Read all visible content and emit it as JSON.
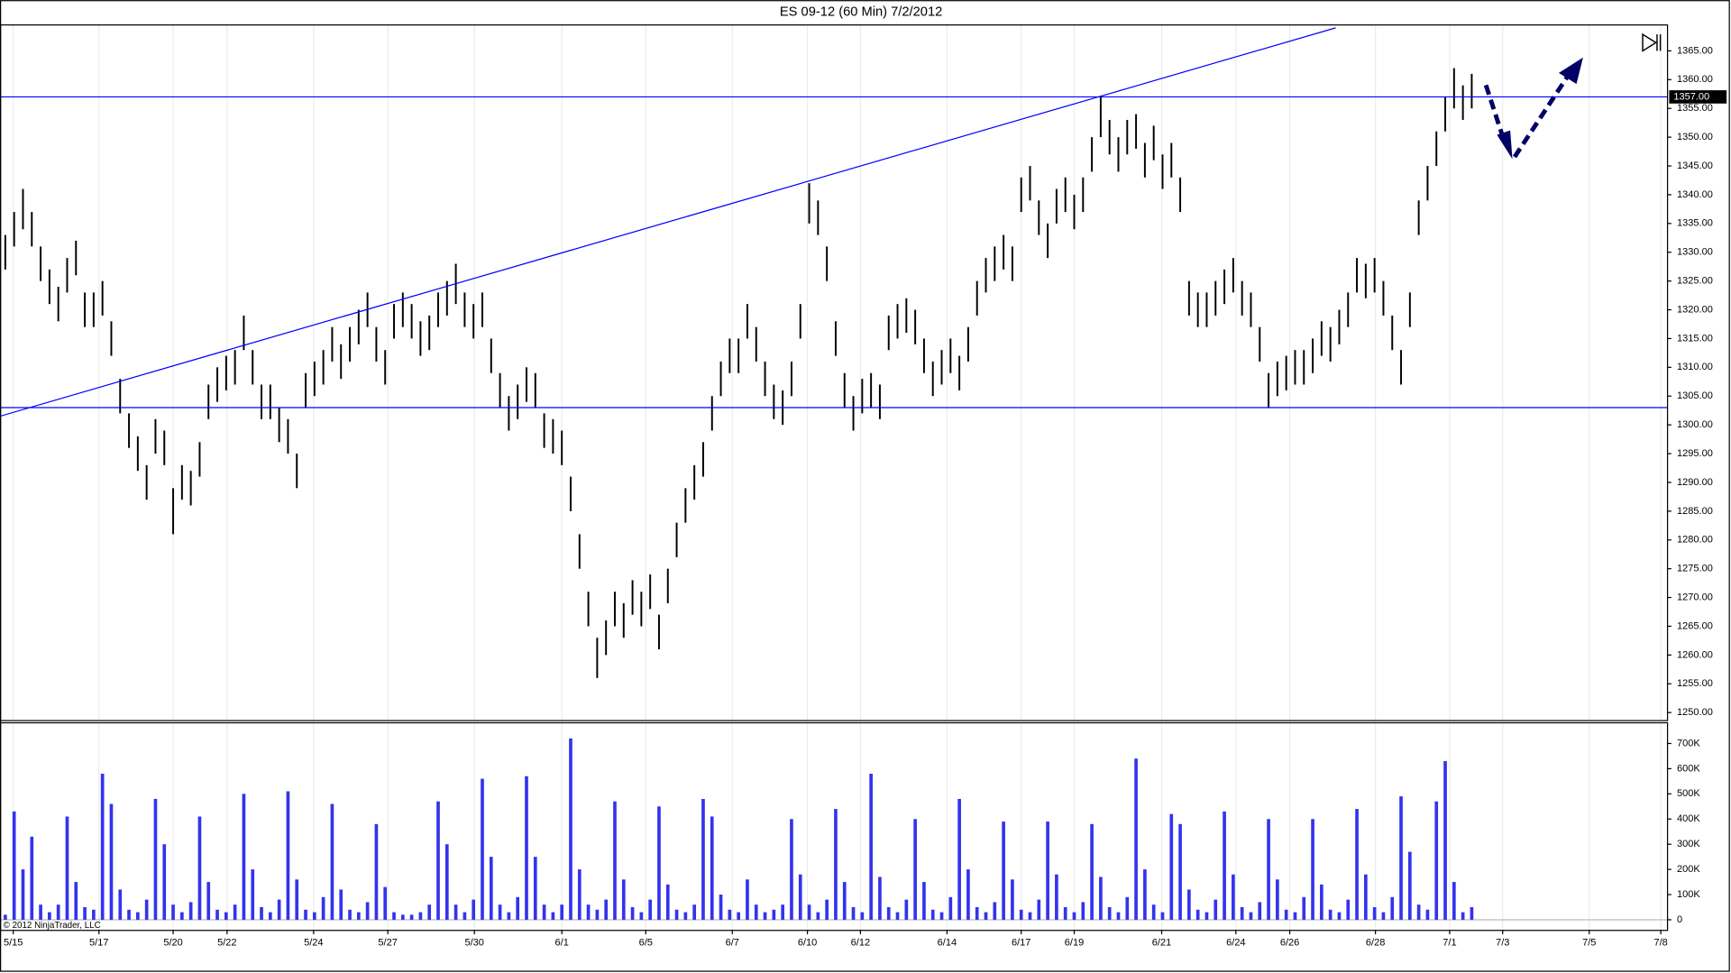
{
  "chart_data": [
    {
      "type": "hilo",
      "title": "ES 09-12 (60 Min)  7/2/2012",
      "copyright": "© 2012 NinjaTrader, LLC",
      "color": "#000000",
      "xlim": [
        -0.6,
        188.1
      ],
      "ylim": [
        1248.7,
        1369.6
      ],
      "yticks": [
        {
          "value": 1250,
          "label": "1250.00"
        },
        {
          "value": 1255,
          "label": "1255.00"
        },
        {
          "value": 1260,
          "label": "1260.00"
        },
        {
          "value": 1265,
          "label": "1265.00"
        },
        {
          "value": 1270,
          "label": "1270.00"
        },
        {
          "value": 1275,
          "label": "1275.00"
        },
        {
          "value": 1280,
          "label": "1280.00"
        },
        {
          "value": 1285,
          "label": "1285.00"
        },
        {
          "value": 1290,
          "label": "1290.00"
        },
        {
          "value": 1295,
          "label": "1295.00"
        },
        {
          "value": 1300,
          "label": "1300.00"
        },
        {
          "value": 1305,
          "label": "1305.00"
        },
        {
          "value": 1310,
          "label": "1310.00"
        },
        {
          "value": 1315,
          "label": "1315.00"
        },
        {
          "value": 1320,
          "label": "1320.00"
        },
        {
          "value": 1325,
          "label": "1325.00"
        },
        {
          "value": 1330,
          "label": "1330.00"
        },
        {
          "value": 1335,
          "label": "1335.00"
        },
        {
          "value": 1340,
          "label": "1340.00"
        },
        {
          "value": 1345,
          "label": "1345.00"
        },
        {
          "value": 1350,
          "label": "1350.00"
        },
        {
          "value": 1355,
          "label": "1355.00"
        },
        {
          "value": 1360,
          "label": "1360.00"
        },
        {
          "value": 1365,
          "label": "1365.00"
        }
      ],
      "high": [
        1333,
        1337,
        1341,
        1337,
        1331,
        1327,
        1324,
        1329,
        1332,
        1323,
        1323,
        1325,
        1318,
        1308,
        1302,
        1298,
        1293,
        1301,
        1299,
        1289,
        1293,
        1292,
        1297,
        1307,
        1310,
        1312,
        1313,
        1319,
        1313,
        1307,
        1307,
        1303,
        1301,
        1295,
        1309,
        1311,
        1313,
        1317,
        1314,
        1317,
        1320,
        1323,
        1317,
        1313,
        1321,
        1323,
        1321,
        1318,
        1319,
        1323,
        1325,
        1328,
        1323,
        1321,
        1323,
        1315,
        1309,
        1305,
        1307,
        1310,
        1309,
        1302,
        1301,
        1299,
        1291,
        1281,
        1271,
        1263,
        1266,
        1271,
        1269,
        1273,
        1271,
        1274,
        1267,
        1275,
        1283,
        1289,
        1293,
        1297,
        1305,
        1311,
        1315,
        1315,
        1321,
        1317,
        1311,
        1307,
        1306,
        1311,
        1321,
        1342,
        1339,
        1331,
        1318,
        1309,
        1305,
        1308,
        1309,
        1307,
        1319,
        1321,
        1322,
        1320,
        1315,
        1311,
        1313,
        1315,
        1312,
        1317,
        1325,
        1329,
        1331,
        1333,
        1331,
        1343,
        1345,
        1339,
        1335,
        1341,
        1343,
        1340,
        1343,
        1350,
        1357,
        1353,
        1350,
        1353,
        1354,
        1349,
        1352,
        1347,
        1349,
        1343,
        1325,
        1323,
        1323,
        1325,
        1327,
        1329,
        1325,
        1323,
        1317,
        1309,
        1311,
        1312,
        1313,
        1313,
        1315,
        1318,
        1317,
        1320,
        1323,
        1329,
        1328,
        1329,
        1325,
        1319,
        1313,
        1323,
        1339,
        1345,
        1351,
        1357,
        1362,
        1359,
        1361
      ],
      "low": [
        1327,
        1331,
        1334,
        1331,
        1325,
        1321,
        1318,
        1323,
        1326,
        1317,
        1317,
        1319,
        1312,
        1302,
        1296,
        1292,
        1287,
        1295,
        1293,
        1281,
        1287,
        1286,
        1291,
        1301,
        1304,
        1306,
        1307,
        1313,
        1307,
        1301,
        1301,
        1297,
        1295,
        1289,
        1303,
        1305,
        1307,
        1311,
        1308,
        1311,
        1314,
        1317,
        1311,
        1307,
        1315,
        1317,
        1315,
        1312,
        1313,
        1317,
        1319,
        1321,
        1317,
        1315,
        1317,
        1309,
        1303,
        1299,
        1301,
        1304,
        1303,
        1296,
        1295,
        1293,
        1285,
        1275,
        1265,
        1256,
        1260,
        1265,
        1263,
        1267,
        1265,
        1268,
        1261,
        1269,
        1277,
        1283,
        1287,
        1291,
        1299,
        1305,
        1309,
        1309,
        1315,
        1311,
        1305,
        1301,
        1300,
        1305,
        1315,
        1335,
        1333,
        1325,
        1312,
        1303,
        1299,
        1302,
        1303,
        1301,
        1313,
        1315,
        1316,
        1314,
        1309,
        1305,
        1307,
        1309,
        1306,
        1311,
        1319,
        1323,
        1325,
        1327,
        1325,
        1337,
        1339,
        1333,
        1329,
        1335,
        1337,
        1334,
        1337,
        1344,
        1350,
        1347,
        1344,
        1347,
        1348,
        1343,
        1346,
        1341,
        1343,
        1337,
        1319,
        1317,
        1317,
        1319,
        1321,
        1323,
        1319,
        1317,
        1311,
        1303,
        1305,
        1306,
        1307,
        1307,
        1309,
        1312,
        1311,
        1314,
        1317,
        1323,
        1322,
        1323,
        1319,
        1313,
        1307,
        1317,
        1333,
        1339,
        1345,
        1351,
        1355,
        1353,
        1355
      ],
      "line_color": "#0000ff",
      "hlines": [
        1357,
        1303
      ],
      "trendline": {
        "x": [
          -0.6,
          150.6
        ],
        "y": [
          1301.5,
          1369
        ]
      },
      "price_marker": {
        "value": 1357,
        "label": "1357.00"
      }
    },
    {
      "type": "bar",
      "color": "#3333ee",
      "xlim": [
        -0.6,
        188.1
      ],
      "ylim": [
        -40000,
        780000
      ],
      "xgrid": true,
      "yticks": [
        0,
        {
          "value": 100000,
          "label": "100K"
        },
        {
          "value": 200000,
          "label": "200K"
        },
        {
          "value": 300000,
          "label": "300K"
        },
        {
          "value": 400000,
          "label": "400K"
        },
        {
          "value": 500000,
          "label": "500K"
        },
        {
          "value": 600000,
          "label": "600K"
        },
        {
          "value": 700000,
          "label": "700K"
        }
      ],
      "xticks": [
        {
          "value": 0.9,
          "label": "5/15"
        },
        {
          "value": 10.6,
          "label": "5/17"
        },
        {
          "value": 19,
          "label": "5/20"
        },
        {
          "value": 25.1,
          "label": "5/22"
        },
        {
          "value": 34.9,
          "label": "5/24"
        },
        {
          "value": 43.3,
          "label": "5/27"
        },
        {
          "value": 53.1,
          "label": "5/30"
        },
        {
          "value": 63,
          "label": "6/1"
        },
        {
          "value": 72.5,
          "label": "6/5"
        },
        {
          "value": 82.3,
          "label": "6/7"
        },
        {
          "value": 90.8,
          "label": "6/10"
        },
        {
          "value": 96.8,
          "label": "6/12"
        },
        {
          "value": 106.6,
          "label": "6/14"
        },
        {
          "value": 115,
          "label": "6/17"
        },
        {
          "value": 121,
          "label": "6/19"
        },
        {
          "value": 130.9,
          "label": "6/21"
        },
        {
          "value": 139.3,
          "label": "6/24"
        },
        {
          "value": 145.4,
          "label": "6/26"
        },
        {
          "value": 155.1,
          "label": "6/28"
        },
        {
          "value": 163.5,
          "label": "7/1"
        },
        {
          "value": 169.5,
          "label": "7/3"
        },
        {
          "value": 179.3,
          "label": "7/5"
        },
        {
          "value": 187.4,
          "label": "7/8"
        }
      ],
      "values": [
        20000,
        430000,
        200000,
        330000,
        60000,
        30000,
        60000,
        410000,
        150000,
        50000,
        40000,
        580000,
        460000,
        120000,
        40000,
        30000,
        80000,
        480000,
        300000,
        60000,
        30000,
        70000,
        410000,
        150000,
        40000,
        30000,
        60000,
        500000,
        200000,
        50000,
        30000,
        80000,
        510000,
        160000,
        40000,
        30000,
        90000,
        460000,
        120000,
        40000,
        30000,
        70000,
        380000,
        130000,
        30000,
        20000,
        20000,
        30000,
        60000,
        470000,
        300000,
        60000,
        30000,
        80000,
        560000,
        250000,
        60000,
        30000,
        90000,
        570000,
        250000,
        60000,
        30000,
        60000,
        720000,
        200000,
        60000,
        40000,
        80000,
        470000,
        160000,
        50000,
        30000,
        80000,
        450000,
        140000,
        40000,
        30000,
        60000,
        480000,
        410000,
        100000,
        40000,
        30000,
        160000,
        60000,
        30000,
        40000,
        60000,
        400000,
        180000,
        60000,
        30000,
        80000,
        440000,
        150000,
        50000,
        30000,
        580000,
        170000,
        50000,
        30000,
        80000,
        400000,
        150000,
        40000,
        30000,
        90000,
        480000,
        200000,
        50000,
        30000,
        70000,
        390000,
        160000,
        40000,
        30000,
        80000,
        390000,
        180000,
        50000,
        30000,
        70000,
        380000,
        170000,
        50000,
        30000,
        90000,
        640000,
        200000,
        60000,
        30000,
        420000,
        380000,
        120000,
        40000,
        30000,
        80000,
        430000,
        180000,
        50000,
        30000,
        70000,
        400000,
        160000,
        40000,
        30000,
        90000,
        400000,
        140000,
        40000,
        30000,
        80000,
        440000,
        180000,
        50000,
        30000,
        90000,
        490000,
        270000,
        60000,
        40000,
        470000,
        630000,
        150000,
        30000,
        50000
      ]
    }
  ]
}
